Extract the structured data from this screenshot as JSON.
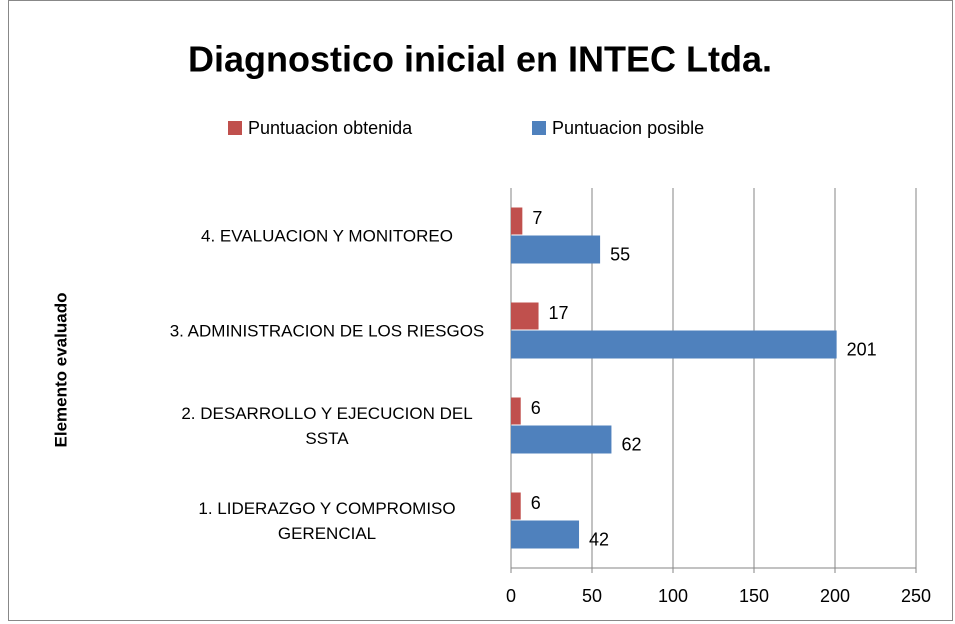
{
  "chart_data": {
    "type": "bar",
    "orientation": "horizontal",
    "title": "Diagnostico inicial en INTEC Ltda.",
    "y_label": "Elemento evaluado",
    "categories": [
      "1. LIDERAZGO Y COMPROMISO GERENCIAL",
      "2. DESARROLLO Y EJECUCION DEL SSTA",
      "3. ADMINISTRACION DE LOS RIESGOS",
      "4. EVALUACION Y MONITOREO"
    ],
    "series": [
      {
        "name": "Puntuacion obtenida",
        "color": "#c0504d",
        "values": [
          6,
          6,
          17,
          7
        ]
      },
      {
        "name": "Puntuacion posible",
        "color": "#4f81bd",
        "values": [
          42,
          62,
          201,
          55
        ]
      }
    ],
    "xlim": [
      0,
      250
    ],
    "xticks": [
      0,
      50,
      100,
      150,
      200,
      250
    ],
    "grid": true,
    "legend": "top"
  }
}
